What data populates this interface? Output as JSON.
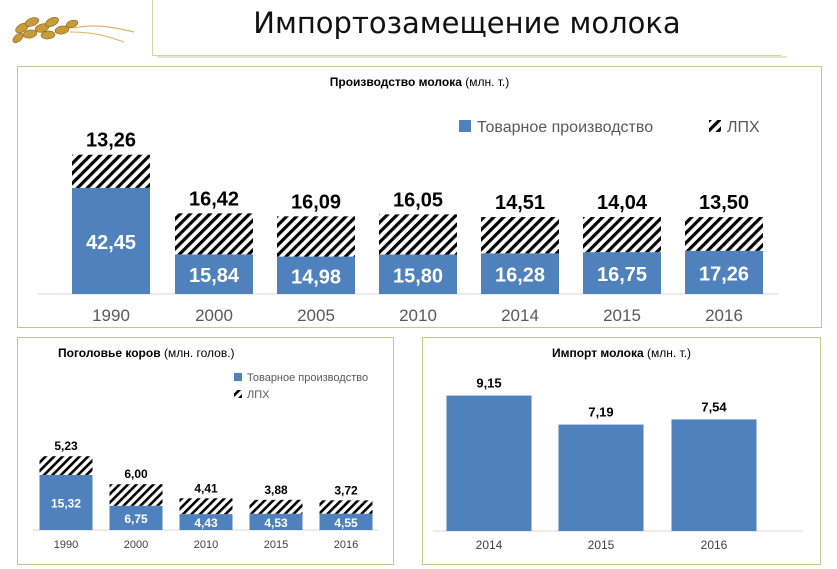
{
  "page": {
    "title": "Импортозамещение молока"
  },
  "colors": {
    "commercial": "#4f81bd",
    "hatch": "#000000",
    "panel_border": "#b7cf84"
  },
  "chart_data": [
    {
      "id": "milk-production",
      "type": "bar",
      "stacked": true,
      "title": "Производство молока",
      "title_unit": "(млн. т.)",
      "categories": [
        "1990",
        "2000",
        "2005",
        "2010",
        "2014",
        "2015",
        "2016"
      ],
      "series": [
        {
          "name": "Товарное производство",
          "pattern": "solid",
          "values": [
            42.45,
            15.84,
            14.98,
            15.8,
            16.28,
            16.75,
            17.26
          ],
          "labels": [
            "42,45",
            "15,84",
            "14,98",
            "15,80",
            "16,28",
            "16,75",
            "17,26"
          ]
        },
        {
          "name": "ЛПХ",
          "pattern": "hatch",
          "values": [
            13.26,
            16.42,
            16.09,
            16.05,
            14.51,
            14.04,
            13.5
          ],
          "labels": [
            "13,26",
            "16,42",
            "16,09",
            "16,05",
            "14,51",
            "14,04",
            "13,50"
          ]
        }
      ],
      "legend_position": "top-right",
      "grid": false
    },
    {
      "id": "cow-population",
      "type": "bar",
      "stacked": true,
      "title": "Поголовье коров",
      "title_unit": "(млн. голов.)",
      "categories": [
        "1990",
        "2000",
        "2010",
        "2015",
        "2016"
      ],
      "series": [
        {
          "name": "Товарное производство",
          "pattern": "solid",
          "values": [
            15.32,
            6.75,
            4.43,
            4.53,
            4.55
          ],
          "labels": [
            "15,32",
            "6,75",
            "4,43",
            "4,53",
            "4,55"
          ]
        },
        {
          "name": "ЛПХ",
          "pattern": "hatch",
          "values": [
            5.23,
            6.0,
            4.41,
            3.88,
            3.72
          ],
          "labels": [
            "5,23",
            "6,00",
            "4,41",
            "3,88",
            "3,72"
          ]
        }
      ],
      "legend_position": "top-right",
      "grid": false
    },
    {
      "id": "milk-import",
      "type": "bar",
      "title": "Импорт молока",
      "title_unit": "(млн. т.)",
      "categories": [
        "2014",
        "2015",
        "2016"
      ],
      "values": [
        9.15,
        7.19,
        7.54
      ],
      "labels": [
        "9,15",
        "7,19",
        "7,54"
      ],
      "grid": false
    }
  ]
}
